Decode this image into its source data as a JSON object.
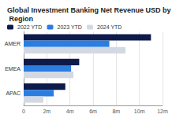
{
  "chart_data": {
    "type": "bar",
    "orientation": "horizontal",
    "title": "Global Investment Banking Net Revenue USD by Region",
    "categories": [
      "AMER",
      "EMEA",
      "APAC"
    ],
    "series": [
      {
        "name": "2022 YTD",
        "color": "#0e1a4a",
        "values": [
          11000000,
          4800000,
          3600000
        ]
      },
      {
        "name": "2023 YTD",
        "color": "#2b7de0",
        "values": [
          7400000,
          4100000,
          2600000
        ]
      },
      {
        "name": "2024 YTD",
        "color": "#d3d9e3",
        "values": [
          8800000,
          4300000,
          1700000
        ]
      }
    ],
    "xlim": [
      0,
      12000000
    ],
    "xticks": [
      0,
      {
        "value": 2000000,
        "label": "2m"
      },
      {
        "value": 4000000,
        "label": "4m"
      },
      {
        "value": 6000000,
        "label": "6m"
      },
      {
        "value": 8000000,
        "label": "8m"
      },
      {
        "value": 10000000,
        "label": "10m"
      },
      {
        "value": 12000000,
        "label": "12m"
      }
    ],
    "grid": true,
    "legend": "top-left"
  }
}
